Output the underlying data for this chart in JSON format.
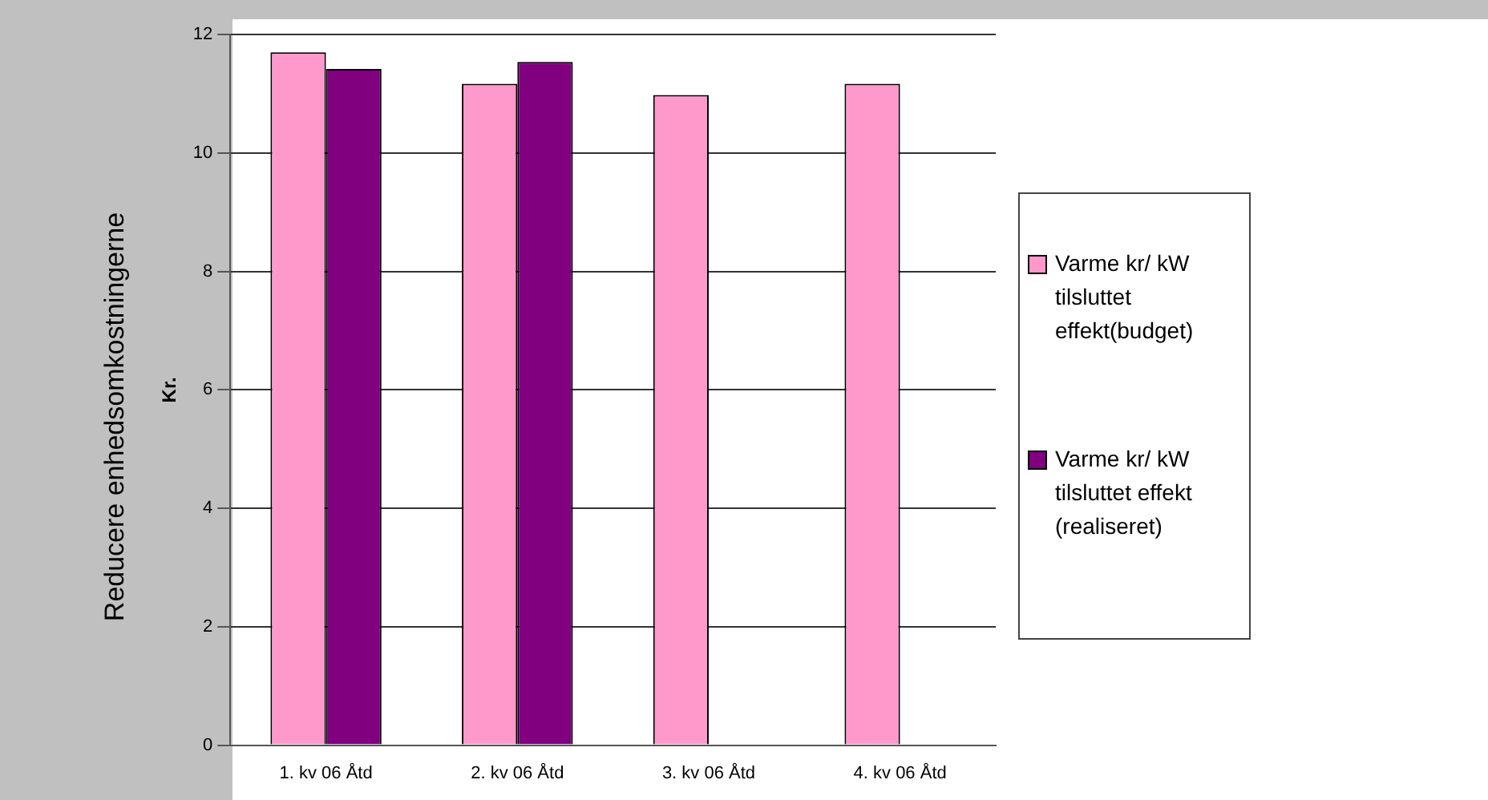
{
  "chart_data": {
    "type": "bar",
    "ylabel": "Kr.",
    "annotations": [
      "Reducere enhedsomkostningerne"
    ],
    "categories": [
      "1. kv 06 Åtd",
      "2. kv 06 Åtd",
      "3. kv 06 Åtd",
      "4. kv 06 Åtd"
    ],
    "series": [
      {
        "name": "Varme kr/ kW tilsluttet effekt(budget)",
        "color": "#ff99cc",
        "values": [
          11.7,
          11.17,
          10.98,
          11.17
        ]
      },
      {
        "name": "Varme kr/ kW tilsluttet effekt (realiseret)",
        "color": "#800080",
        "values": [
          11.42,
          11.54,
          null,
          null
        ]
      }
    ],
    "ylim": [
      0,
      12
    ],
    "yticks": [
      0,
      2,
      4,
      6,
      8,
      10,
      12
    ],
    "grid": "y",
    "legend": "right"
  }
}
